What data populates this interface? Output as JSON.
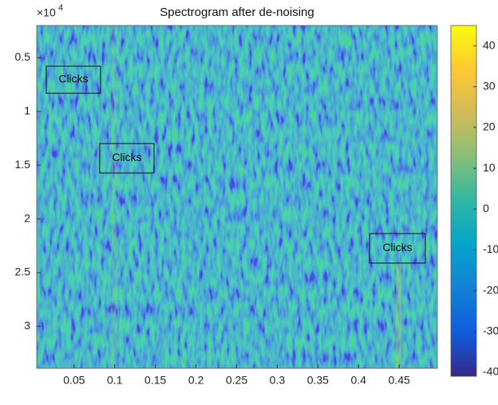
{
  "chart_data": {
    "type": "heatmap",
    "title": "Spectrogram after de-noising",
    "xlim": [
      0.004,
      0.497
    ],
    "xticks": [
      0.05,
      0.1,
      0.15,
      0.2,
      0.25,
      0.3,
      0.35,
      0.4,
      0.45
    ],
    "ylim": [
      0.2,
      3.39
    ],
    "y_reversed": true,
    "yticks": [
      0.5,
      1,
      1.5,
      2,
      2.5,
      3
    ],
    "y_exponent": {
      "base": "×10",
      "power": "4"
    },
    "clim": [
      -41,
      45
    ],
    "cticks": [
      -40,
      -30,
      -20,
      -10,
      0,
      10,
      20,
      30,
      40
    ],
    "colormap": [
      "#352a87",
      "#0f5cdd",
      "#1481d6",
      "#06a4ca",
      "#2eb7a4",
      "#87bf77",
      "#d1bb59",
      "#fec832",
      "#f9fb0e"
    ],
    "annotations": [
      "Clicks",
      "Clicks",
      "Clicks"
    ]
  }
}
